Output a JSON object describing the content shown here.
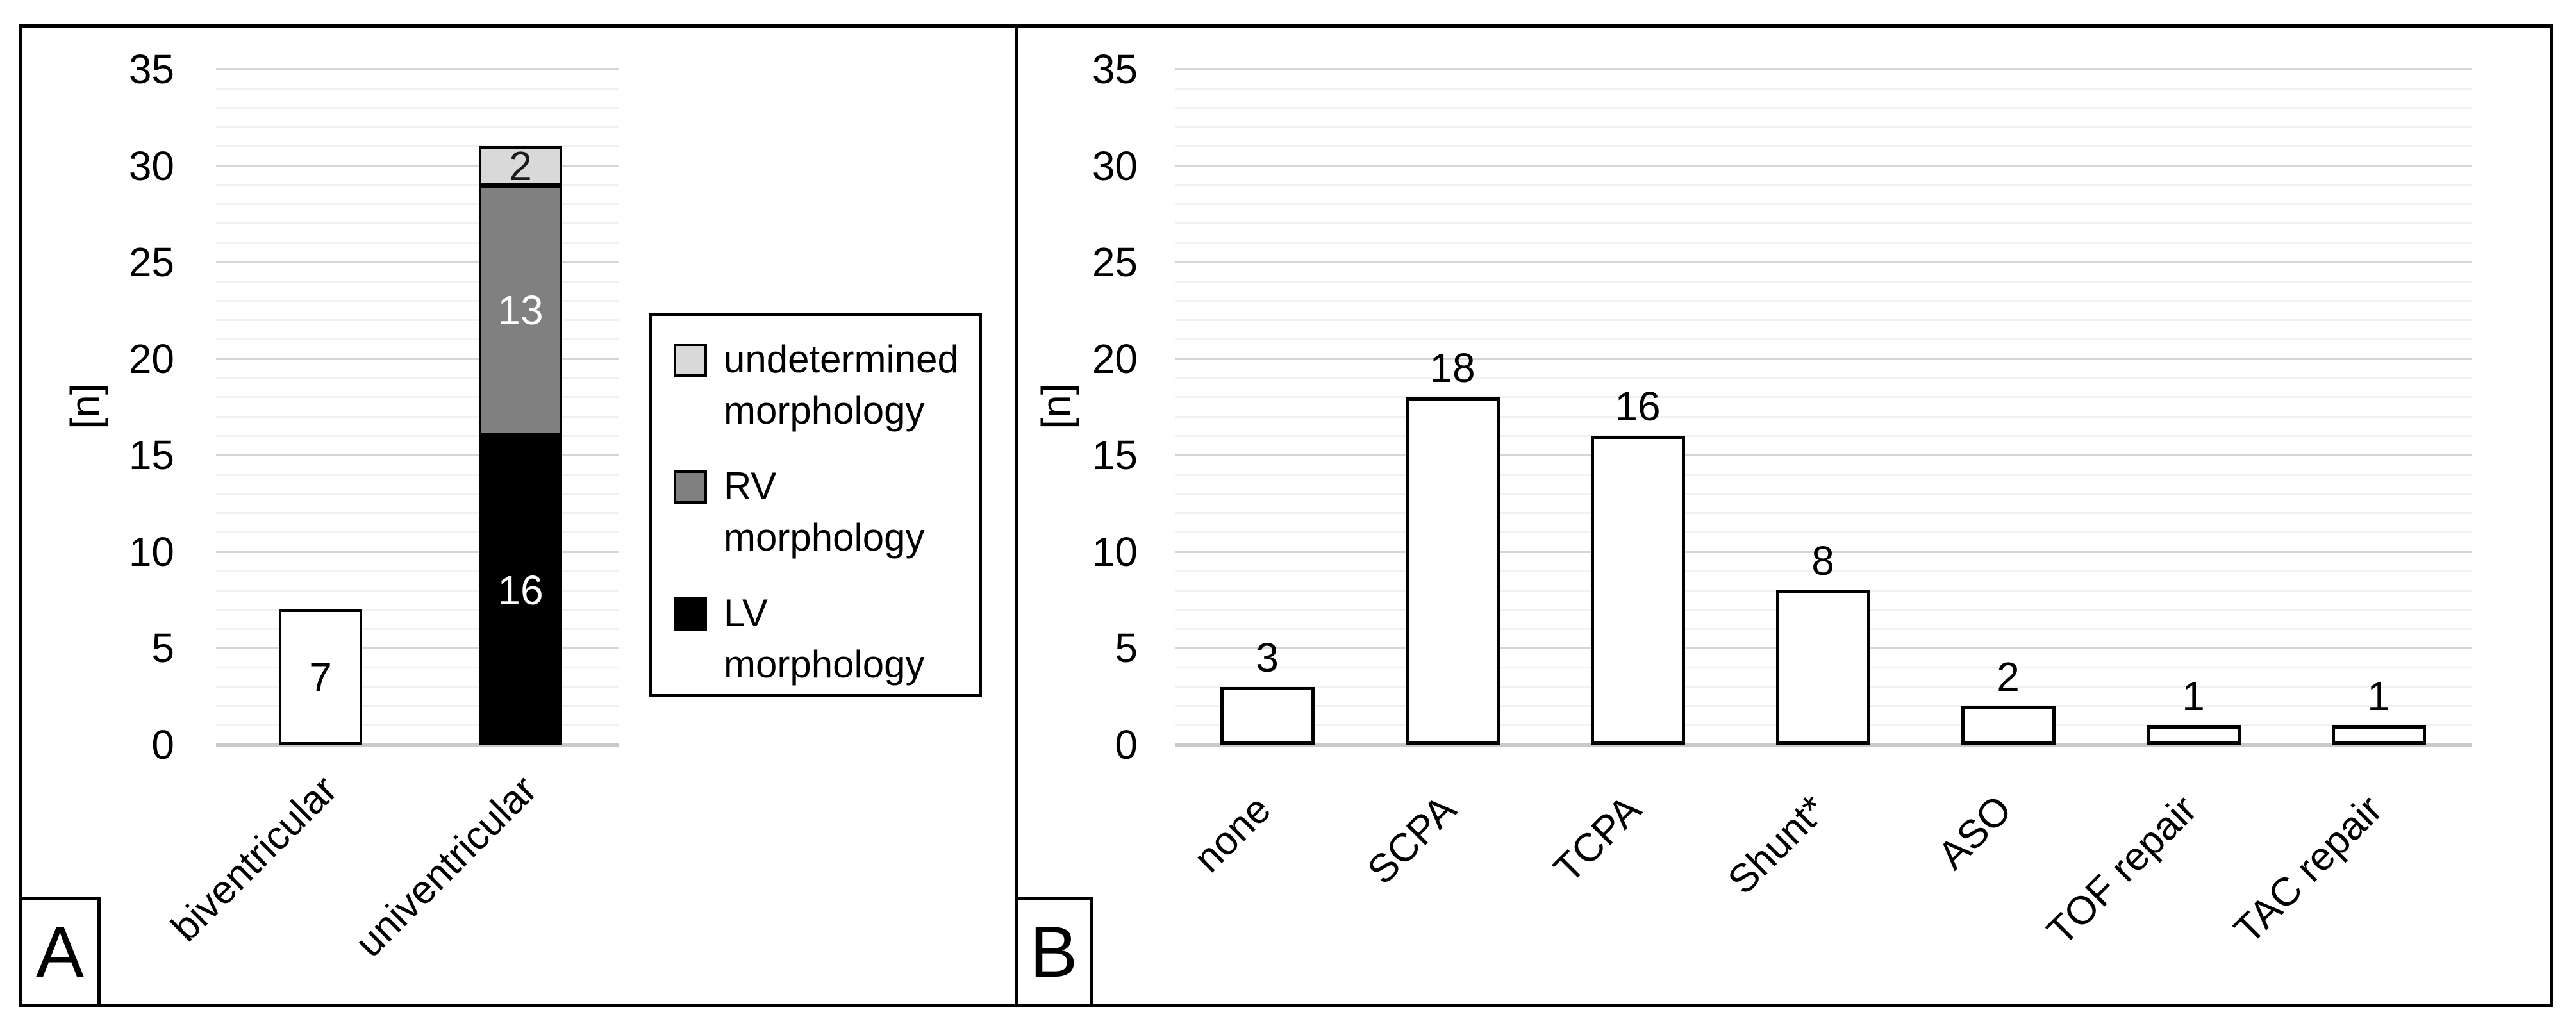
{
  "chart_data": [
    {
      "id": "A",
      "type": "stacked-bar",
      "title": "",
      "ylabel": "[n]",
      "categories": [
        "biventricular",
        "univentricular"
      ],
      "yticks": [
        0,
        5,
        10,
        15,
        20,
        25,
        30,
        35
      ],
      "ylim": [
        0,
        35
      ],
      "grid": "horizontal, minor every 1, major every 5",
      "legend_position": "right of plot",
      "bars": [
        {
          "category": "biventricular",
          "segments": [
            {
              "value": 7,
              "label": "7",
              "fill": "#ffffff",
              "label_color": "#000000"
            }
          ]
        },
        {
          "category": "univentricular",
          "segments": [
            {
              "series": "LV morphology",
              "value": 16,
              "label": "16",
              "fill": "#000000",
              "label_color": "#ffffff"
            },
            {
              "series": "RV morphology",
              "value": 13,
              "label": "13",
              "fill": "#808080",
              "label_color": "#ffffff"
            },
            {
              "series": "undetermined morphology",
              "value": 2,
              "label": "2",
              "fill": "#d9d9d9",
              "label_color": "#1a1a1a"
            }
          ]
        }
      ]
    },
    {
      "id": "B",
      "type": "bar",
      "title": "",
      "ylabel": "[n]",
      "categories": [
        "none",
        "SCPA",
        "TCPA",
        "Shunt*",
        "ASO",
        "TOF repair",
        "TAC repair"
      ],
      "values": [
        3,
        18,
        16,
        8,
        2,
        1,
        1
      ],
      "labels": [
        "3",
        "18",
        "16",
        "8",
        "2",
        "1",
        "1"
      ],
      "yticks": [
        0,
        5,
        10,
        15,
        20,
        25,
        30,
        35
      ],
      "ylim": [
        0,
        35
      ],
      "grid": "horizontal, minor every 1, major every 5",
      "bar_fill": "#ffffff"
    }
  ],
  "panels": [
    {
      "panel_label": "A",
      "legend": {
        "items": [
          {
            "label": "undetermined morphology",
            "swatch": "#d9d9d9"
          },
          {
            "label": "RV morphology",
            "swatch": "#808080"
          },
          {
            "label": "LV morphology",
            "swatch": "#000000"
          }
        ]
      }
    },
    {
      "panel_label": "B"
    }
  ],
  "colors": {
    "background": "#ffffff",
    "frame": "#000000",
    "bar_border": "#000000",
    "major_gridline": "#d5d5d5",
    "minor_gridline": "#f1f1f1",
    "axis_line": "#c9c9c9"
  }
}
